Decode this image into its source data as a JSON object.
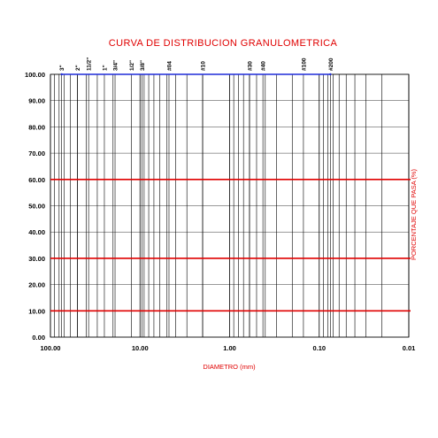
{
  "chart_data": {
    "type": "line",
    "title": "CURVA DE DISTRIBUCION GRANULOMETRICA",
    "xlabel": "DIAMETRO (mm)",
    "ylabel": "PORCENTAJE QUE PASA (%)",
    "x_scale": "log",
    "x_reversed": true,
    "xlim": [
      100,
      0.01
    ],
    "ylim": [
      0,
      100
    ],
    "x_tick_labels": [
      "100.00",
      "10.00",
      "1.00",
      "0.10",
      "0.01"
    ],
    "y_tick_labels": [
      "0.00",
      "10.00",
      "20.00",
      "30.00",
      "40.00",
      "50.00",
      "60.00",
      "70.00",
      "80.00",
      "90.00",
      "100.00"
    ],
    "sieves": [
      {
        "label": "3\"",
        "size": 75
      },
      {
        "label": "2\"",
        "size": 50
      },
      {
        "label": "11/2\"",
        "size": 37.5
      },
      {
        "label": "1\"",
        "size": 25
      },
      {
        "label": "3/4\"",
        "size": 19
      },
      {
        "label": "1/2\"",
        "size": 12.5
      },
      {
        "label": "3/8\"",
        "size": 9.5
      },
      {
        "label": "#04",
        "size": 4.75
      },
      {
        "label": "#10",
        "size": 2
      },
      {
        "label": "#30",
        "size": 0.6
      },
      {
        "label": "#40",
        "size": 0.425
      },
      {
        "label": "#100",
        "size": 0.15
      },
      {
        "label": "#200",
        "size": 0.075
      }
    ],
    "series": [
      {
        "values": [
          [
            75,
            100
          ],
          [
            0.075,
            100
          ]
        ]
      }
    ],
    "reference_lines_y": [
      10,
      30,
      60
    ],
    "grid": true,
    "colors": {
      "title": "#e00000",
      "reference": "#e00000",
      "series": "#1e2bd8",
      "grid": "#000000"
    }
  }
}
